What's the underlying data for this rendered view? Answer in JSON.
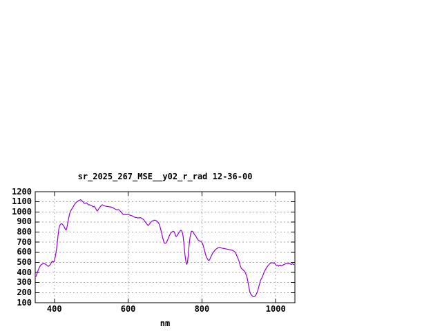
{
  "page": {
    "background_color": "#ffffff",
    "text_color": "#000000"
  },
  "chart_data": {
    "type": "line",
    "title": "sr_2025_267_MSE__y02_r_rad 12-36-00",
    "xlabel": "nm",
    "ylabel": "",
    "xlim": [
      348,
      1052
    ],
    "ylim": [
      100,
      1200
    ],
    "xticks": [
      400,
      600,
      800,
      1000
    ],
    "yticks": [
      100,
      200,
      300,
      400,
      500,
      600,
      700,
      800,
      900,
      1000,
      1100,
      1200
    ],
    "grid": true,
    "grid_color": "#aaaaaa",
    "border_color": "#000000",
    "line_color": "#9400d3",
    "legend": "none",
    "series": [
      {
        "name": "sr_2025_267_MSE__y02_r_rad",
        "x": [
          350,
          352,
          355,
          358,
          361,
          364,
          368,
          372,
          376,
          380,
          383,
          386,
          389,
          392,
          394,
          396,
          398,
          400,
          402,
          404,
          406,
          408,
          410,
          412,
          414,
          416,
          418,
          420,
          422,
          424,
          426,
          428,
          430,
          432,
          434,
          436,
          438,
          440,
          442,
          444,
          447,
          450,
          453,
          456,
          459,
          462,
          465,
          468,
          471,
          473,
          476,
          479,
          481,
          484,
          487,
          490,
          493,
          496,
          499,
          502,
          505,
          508,
          511,
          514,
          516,
          518,
          521,
          524,
          527,
          530,
          533,
          536,
          540,
          544,
          548,
          552,
          556,
          560,
          564,
          567,
          570,
          573,
          576,
          579,
          582,
          585,
          588,
          591,
          594,
          597,
          600,
          603,
          606,
          609,
          612,
          615,
          618,
          621,
          624,
          627,
          630,
          633,
          636,
          639,
          642,
          645,
          648,
          651,
          654,
          656,
          658,
          661,
          664,
          667,
          670,
          673,
          676,
          679,
          682,
          684,
          686,
          688,
          690,
          692,
          694,
          696,
          698,
          700,
          702,
          704,
          707,
          710,
          713,
          716,
          719,
          722,
          725,
          728,
          730,
          732,
          735,
          738,
          741,
          743,
          745,
          747,
          749,
          751,
          753,
          755,
          757,
          759,
          761,
          763,
          765,
          767,
          769,
          771,
          773,
          775,
          777,
          779,
          781,
          783,
          785,
          787,
          790,
          793,
          796,
          799,
          801,
          803,
          805,
          807,
          809,
          811,
          813,
          815,
          817,
          819,
          821,
          823,
          826,
          829,
          832,
          835,
          838,
          841,
          844,
          847,
          850,
          853,
          856,
          860,
          864,
          868,
          872,
          876,
          880,
          883,
          886,
          889,
          892,
          895,
          898,
          901,
          904,
          907,
          910,
          913,
          916,
          919,
          922,
          925,
          928,
          930,
          932,
          934,
          936,
          938,
          940,
          942,
          944,
          946,
          948,
          950,
          952,
          954,
          956,
          958,
          960,
          962,
          964,
          966,
          968,
          970,
          972,
          974,
          976,
          978,
          980,
          982,
          984,
          986,
          988,
          990,
          992,
          994,
          996,
          998,
          1000,
          1002,
          1004,
          1006,
          1008,
          1010,
          1012,
          1014,
          1016,
          1018,
          1020,
          1022,
          1025,
          1028,
          1031,
          1034,
          1037,
          1040,
          1043,
          1046,
          1048,
          1050
        ],
        "y": [
          358,
          380,
          412,
          440,
          462,
          476,
          486,
          487,
          482,
          470,
          461,
          466,
          480,
          500,
          512,
          506,
          503,
          520,
          548,
          590,
          640,
          700,
          768,
          830,
          862,
          874,
          880,
          882,
          876,
          866,
          855,
          840,
          826,
          822,
          845,
          888,
          925,
          960,
          990,
          1010,
          1028,
          1045,
          1065,
          1082,
          1094,
          1103,
          1110,
          1116,
          1120,
          1115,
          1105,
          1094,
          1084,
          1085,
          1090,
          1079,
          1069,
          1070,
          1064,
          1059,
          1050,
          1056,
          1040,
          1018,
          1008,
          1018,
          1035,
          1050,
          1063,
          1070,
          1064,
          1059,
          1055,
          1053,
          1051,
          1049,
          1046,
          1038,
          1029,
          1024,
          1020,
          1024,
          1019,
          1005,
          993,
          980,
          973,
          977,
          971,
          974,
          975,
          970,
          966,
          963,
          959,
          952,
          947,
          944,
          944,
          939,
          942,
          943,
          938,
          931,
          922,
          908,
          893,
          878,
          866,
          872,
          882,
          895,
          906,
          913,
          917,
          917,
          914,
          903,
          893,
          880,
          858,
          830,
          800,
          768,
          738,
          712,
          695,
          688,
          690,
          700,
          722,
          750,
          775,
          792,
          802,
          808,
          802,
          770,
          755,
          762,
          780,
          797,
          812,
          818,
          812,
          795,
          755,
          690,
          610,
          545,
          500,
          480,
          505,
          575,
          660,
          730,
          775,
          805,
          810,
          806,
          795,
          780,
          770,
          762,
          750,
          735,
          720,
          712,
          708,
          702,
          692,
          672,
          645,
          618,
          590,
          565,
          546,
          535,
          522,
          519,
          527,
          545,
          568,
          590,
          605,
          620,
          630,
          638,
          646,
          650,
          647,
          642,
          639,
          637,
          634,
          631,
          628,
          625,
          623,
          619,
          613,
          605,
          588,
          562,
          535,
          505,
          463,
          440,
          430,
          420,
          410,
          385,
          355,
          300,
          240,
          205,
          188,
          178,
          170,
          164,
          161,
          162,
          166,
          176,
          190,
          205,
          230,
          258,
          283,
          312,
          332,
          342,
          360,
          378,
          396,
          415,
          425,
          440,
          451,
          462,
          470,
          479,
          487,
          492,
          494,
          497,
          495,
          490,
          496,
          488,
          476,
          470,
          474,
          470,
          463,
          470,
          474,
          465,
          465,
          470,
          474,
          479,
          483,
          488,
          491,
          487,
          491,
          483,
          480,
          486,
          478,
          479
        ]
      }
    ]
  }
}
